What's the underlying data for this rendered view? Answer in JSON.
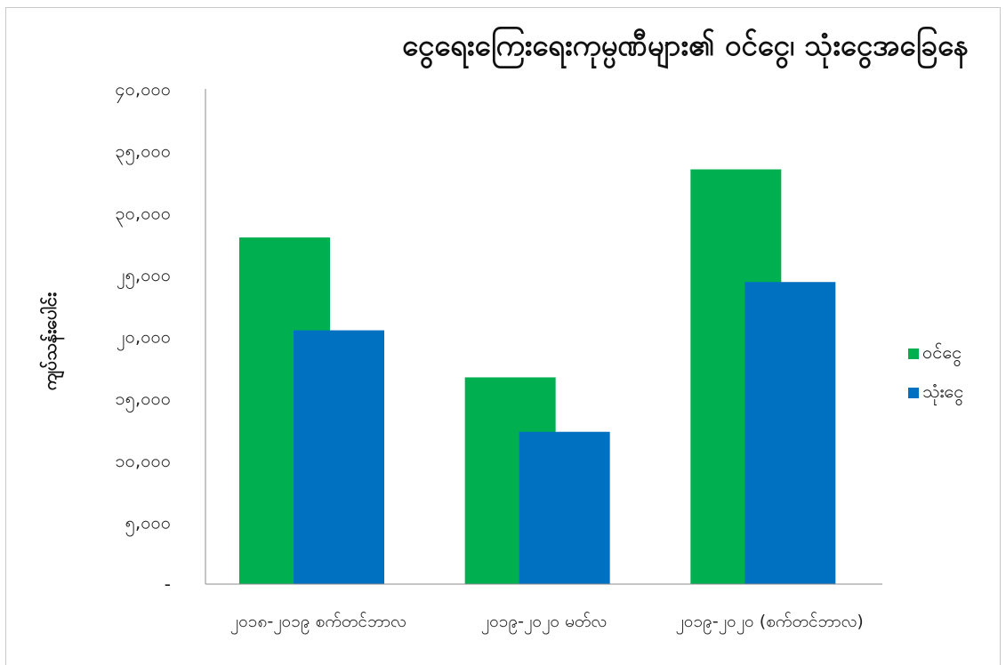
{
  "chart_data": {
    "type": "bar",
    "title": "ငွေရေးကြေးရေးကုမ္ပဏီများ၏ ဝင်ငွေ၊ သုံးငွေအခြေနေ",
    "xlabel": "",
    "ylabel": "ကျပ်သန်းပေါင်း",
    "categories": [
      "၂၀၁၈-၂၀၁၉ စက်တင်ဘာလ",
      "၂၀၁၉-၂၀၂၀ မတ်လ",
      "၂၀၁၉-၂၀၂၀ (စက်တင်ဘာလ)"
    ],
    "series": [
      {
        "name": "ဝင်ငွေ",
        "color": "#00b050",
        "values": [
          28000,
          16700,
          33500
        ]
      },
      {
        "name": "သုံးငွေ",
        "color": "#0070c0",
        "values": [
          20500,
          12300,
          24400
        ]
      }
    ],
    "ylim": [
      0,
      40000
    ],
    "yticks": [
      0,
      5000,
      10000,
      15000,
      20000,
      25000,
      30000,
      35000,
      40000
    ],
    "ytick_labels": [
      "-",
      "၅,၀၀၀",
      "၁၀,၀၀၀",
      "၁၅,၀၀၀",
      "၂၀,၀၀၀",
      "၂၅,၀၀၀",
      "၃၀,၀၀၀",
      "၃၅,၀၀၀",
      "၄၀,၀၀၀"
    ],
    "grid": false,
    "legend": "right"
  }
}
